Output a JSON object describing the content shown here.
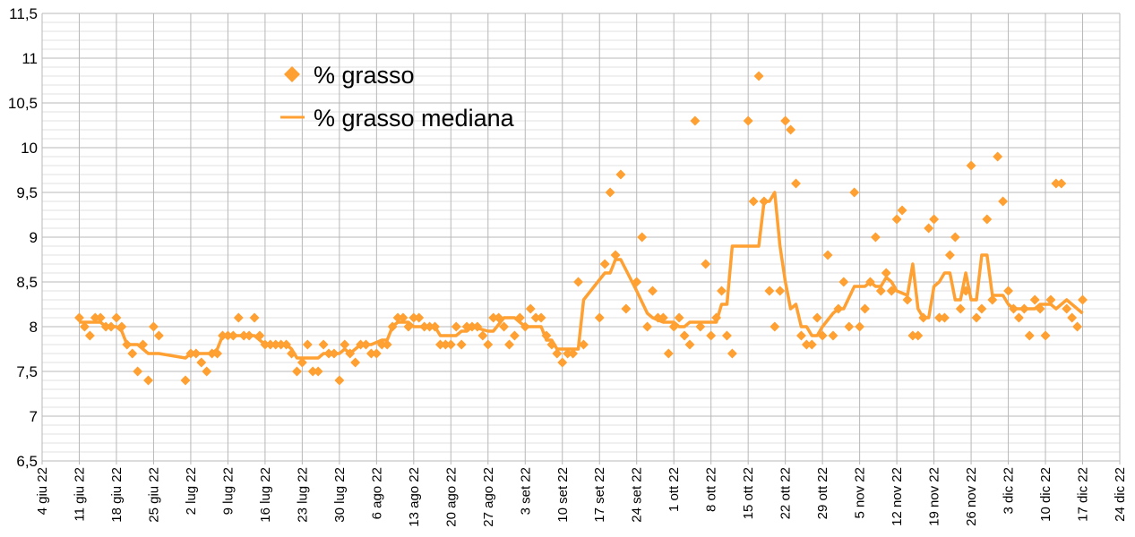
{
  "chart_data": {
    "type": "line+scatter",
    "title": "",
    "xlabel": "",
    "ylabel": "",
    "ylim": [
      6.5,
      11.5
    ],
    "y_major_step": 0.5,
    "y_minor_step": 0.1,
    "y_tick_labels": [
      "6,5",
      "7",
      "7,5",
      "8",
      "8,5",
      "9",
      "9,5",
      "10",
      "10,5",
      "11",
      "11,5"
    ],
    "x_unit": "days since 4 giu 22",
    "xlim": [
      0,
      203
    ],
    "x_tick_step_days": 7,
    "x_tick_labels": [
      "4 giu 22",
      "11 giu 22",
      "18 giu 22",
      "25 giu 22",
      "2 lug 22",
      "9 lug 22",
      "16 lug 22",
      "23 lug 22",
      "30 lug 22",
      "6 ago 22",
      "13 ago 22",
      "20 ago 22",
      "27 ago 22",
      "3 set 22",
      "10 set 22",
      "17 set 22",
      "24 set 22",
      "1 ott 22",
      "8 ott 22",
      "15 ott 22",
      "22 ott 22",
      "29 ott 22",
      "5 nov 22",
      "12 nov 22",
      "19 nov 22",
      "26 nov 22",
      "3 dic 22",
      "10 dic 22",
      "17 dic 22",
      "24 dic 22"
    ],
    "grid": true,
    "legend_position": "top-left-inside",
    "colors": {
      "series": "#ffa033",
      "grid_major": "#b8b8b8",
      "grid_minor": "#e2e2e2"
    },
    "series": [
      {
        "name": "% grasso",
        "kind": "scatter",
        "marker": "diamond",
        "segments": [
          {
            "start_day": 7,
            "values": [
              8.1,
              8.0,
              7.9,
              8.1,
              8.1,
              8.0,
              8.0,
              8.1,
              8.0,
              7.8,
              7.7,
              7.5,
              7.8,
              7.4,
              8.0,
              7.9
            ]
          },
          {
            "start_day": 27,
            "values": [
              7.4,
              7.7,
              7.7,
              7.6,
              7.5,
              7.7,
              7.7,
              7.9,
              7.9,
              7.9,
              8.1,
              7.9,
              7.9,
              8.1,
              7.9,
              7.8,
              7.8,
              7.8,
              7.8,
              7.8,
              7.7,
              7.5,
              7.6,
              7.8,
              7.5,
              7.5,
              7.8,
              7.7,
              7.7,
              7.4,
              7.8,
              7.7,
              7.6,
              7.8,
              7.8,
              7.7,
              7.7,
              7.8,
              7.8,
              8.0,
              8.1,
              8.1,
              8.0,
              8.1,
              8.1,
              8.0,
              8.0,
              8.0,
              7.8,
              7.8,
              7.8,
              8.0,
              7.8,
              8.0,
              8.0,
              8.0,
              7.9,
              7.8,
              8.1,
              8.1,
              8.0,
              7.8,
              7.9,
              8.1,
              8.0,
              8.2,
              8.1,
              8.1,
              7.9,
              7.8,
              7.7,
              7.6,
              7.7,
              7.7,
              8.5,
              7.8
            ]
          },
          {
            "start_day": 105,
            "values": [
              8.1,
              8.7,
              9.5,
              8.8,
              9.7,
              8.2
            ]
          },
          {
            "start_day": 112,
            "values": [
              8.5,
              9.0,
              8.0,
              8.4,
              8.1,
              8.1,
              7.7,
              8.0,
              8.1,
              7.9,
              7.8,
              10.3,
              8.0,
              8.7,
              7.9,
              8.1,
              8.4,
              7.9,
              7.7
            ]
          },
          {
            "start_day": 133,
            "values": [
              10.3,
              9.4,
              10.8,
              9.4,
              8.4,
              8.0,
              8.4,
              10.3,
              10.2,
              9.6,
              7.9,
              7.8,
              7.8,
              8.1,
              7.9,
              8.8,
              7.9,
              8.2,
              8.5,
              8.0,
              9.5,
              8.0,
              8.2,
              8.5,
              9.0,
              8.4,
              8.6,
              8.4,
              9.2,
              9.3,
              8.3,
              7.9,
              7.9,
              8.1,
              9.1,
              9.2,
              8.1,
              8.1,
              8.8,
              9.0,
              8.2,
              8.4,
              9.8,
              8.1,
              8.2,
              9.2,
              8.3,
              9.9,
              9.4,
              8.4,
              8.2,
              8.1,
              8.2,
              7.9,
              8.3,
              8.2,
              7.9,
              8.3,
              9.6,
              9.6,
              8.2,
              8.1,
              8.0,
              8.3
            ]
          }
        ]
      },
      {
        "name": "% grasso mediana",
        "kind": "line",
        "points": [
          [
            7,
            8.05
          ],
          [
            9,
            8.05
          ],
          [
            11,
            8.05
          ],
          [
            12,
            8.0
          ],
          [
            14,
            8.0
          ],
          [
            15,
            7.95
          ],
          [
            16,
            7.8
          ],
          [
            18,
            7.8
          ],
          [
            19,
            7.75
          ],
          [
            20,
            7.7
          ],
          [
            22,
            7.7
          ],
          [
            27,
            7.65
          ],
          [
            28,
            7.7
          ],
          [
            32,
            7.7
          ],
          [
            33,
            7.75
          ],
          [
            34,
            7.9
          ],
          [
            40,
            7.9
          ],
          [
            41,
            7.85
          ],
          [
            42,
            7.8
          ],
          [
            46,
            7.8
          ],
          [
            47,
            7.75
          ],
          [
            48,
            7.65
          ],
          [
            52,
            7.65
          ],
          [
            53,
            7.7
          ],
          [
            56,
            7.7
          ],
          [
            57,
            7.75
          ],
          [
            58,
            7.7
          ],
          [
            60,
            7.8
          ],
          [
            62,
            7.8
          ],
          [
            64,
            7.85
          ],
          [
            65,
            7.85
          ],
          [
            66,
            8.0
          ],
          [
            67,
            8.05
          ],
          [
            69,
            8.05
          ],
          [
            70,
            8.0
          ],
          [
            74,
            8.0
          ],
          [
            75,
            7.9
          ],
          [
            78,
            7.9
          ],
          [
            79,
            7.95
          ],
          [
            80,
            7.95
          ],
          [
            81,
            8.0
          ],
          [
            84,
            7.95
          ],
          [
            85,
            7.95
          ],
          [
            87,
            8.1
          ],
          [
            89,
            8.1
          ],
          [
            90,
            8.05
          ],
          [
            91,
            8.0
          ],
          [
            94,
            8.0
          ],
          [
            95,
            7.85
          ],
          [
            96,
            7.85
          ],
          [
            97,
            7.75
          ],
          [
            101,
            7.75
          ],
          [
            102,
            8.3
          ],
          [
            104,
            8.45
          ],
          [
            106,
            8.6
          ],
          [
            107,
            8.6
          ],
          [
            108,
            8.75
          ],
          [
            109,
            8.75
          ],
          [
            112,
            8.4
          ],
          [
            114,
            8.15
          ],
          [
            115,
            8.1
          ],
          [
            117,
            8.05
          ],
          [
            119,
            8.05
          ],
          [
            120,
            8.0
          ],
          [
            121,
            8.0
          ],
          [
            122,
            8.05
          ],
          [
            125,
            8.05
          ],
          [
            127,
            8.05
          ],
          [
            128,
            8.25
          ],
          [
            129,
            8.25
          ],
          [
            130,
            8.9
          ],
          [
            135,
            8.9
          ],
          [
            136,
            9.4
          ],
          [
            137,
            9.4
          ],
          [
            138,
            9.5
          ],
          [
            139,
            8.9
          ],
          [
            140,
            8.5
          ],
          [
            141,
            8.2
          ],
          [
            142,
            8.25
          ],
          [
            143,
            8.0
          ],
          [
            144,
            8.0
          ],
          [
            145,
            7.9
          ],
          [
            146,
            7.9
          ],
          [
            147,
            8.0
          ],
          [
            149,
            8.15
          ],
          [
            150,
            8.2
          ],
          [
            151,
            8.2
          ],
          [
            153,
            8.45
          ],
          [
            155,
            8.45
          ],
          [
            156,
            8.5
          ],
          [
            157,
            8.45
          ],
          [
            158,
            8.45
          ],
          [
            159,
            8.55
          ],
          [
            160,
            8.5
          ],
          [
            161,
            8.4
          ],
          [
            163,
            8.35
          ],
          [
            164,
            8.7
          ],
          [
            165,
            8.2
          ],
          [
            166,
            8.1
          ],
          [
            167,
            8.1
          ],
          [
            168,
            8.45
          ],
          [
            169,
            8.5
          ],
          [
            170,
            8.6
          ],
          [
            171,
            8.6
          ],
          [
            172,
            8.3
          ],
          [
            173,
            8.3
          ],
          [
            174,
            8.6
          ],
          [
            175,
            8.3
          ],
          [
            176,
            8.3
          ],
          [
            177,
            8.8
          ],
          [
            178,
            8.8
          ],
          [
            179,
            8.35
          ],
          [
            181,
            8.35
          ],
          [
            182,
            8.25
          ],
          [
            183,
            8.2
          ],
          [
            184,
            8.2
          ],
          [
            186,
            8.2
          ],
          [
            187,
            8.2
          ],
          [
            188,
            8.25
          ],
          [
            190,
            8.25
          ],
          [
            191,
            8.2
          ],
          [
            193,
            8.3
          ],
          [
            196,
            8.15
          ]
        ]
      }
    ]
  }
}
